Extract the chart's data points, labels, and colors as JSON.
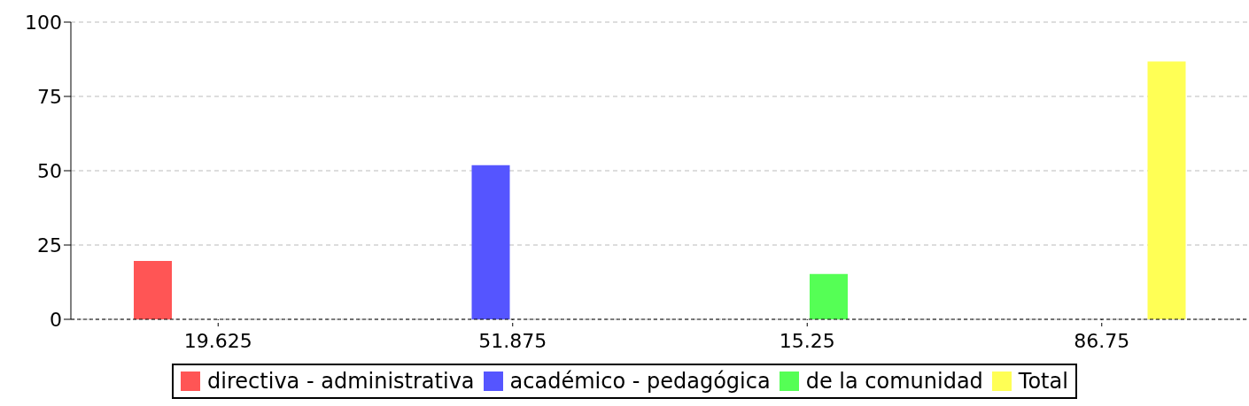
{
  "chart_data": {
    "type": "bar",
    "categories": [
      "19.625",
      "51.875",
      "15.25",
      "86.75"
    ],
    "series": [
      {
        "name": "directiva - administrativa",
        "color": "#ff5555",
        "values": [
          19.625,
          null,
          null,
          null
        ]
      },
      {
        "name": "académico - pedagógica",
        "color": "#5555ff",
        "values": [
          null,
          51.875,
          null,
          null
        ]
      },
      {
        "name": "de la comunidad",
        "color": "#55ff55",
        "values": [
          null,
          null,
          15.25,
          null
        ]
      },
      {
        "name": "Total",
        "color": "#ffff55",
        "values": [
          null,
          null,
          null,
          86.75
        ]
      }
    ],
    "ylim": [
      0,
      100
    ],
    "yticks": [
      0,
      25,
      50,
      75,
      100
    ],
    "grid": "y",
    "legend": "bottom"
  }
}
